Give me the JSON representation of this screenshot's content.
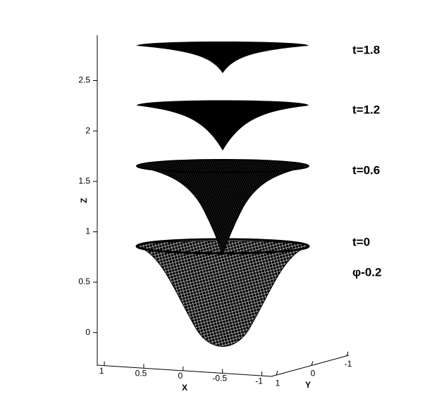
{
  "chart_data": {
    "type": "surface3d",
    "xlabel": "X",
    "ylabel": "Y",
    "zlabel": "Z",
    "zlim": [
      -0.33,
      2.95
    ],
    "zticks": [
      0,
      0.5,
      1,
      1.5,
      2,
      2.5
    ],
    "xlim": [
      1.09,
      -1.12
    ],
    "xticks": [
      1,
      0.5,
      0,
      -0.5,
      -1
    ],
    "ylim": [
      1.14,
      -1.06
    ],
    "yticks": [
      1,
      0,
      -1
    ],
    "labels": [
      "t=1.8",
      "t=1.2",
      "t=0.6",
      "t=0"
    ],
    "annotation": "φ-0.2"
  }
}
